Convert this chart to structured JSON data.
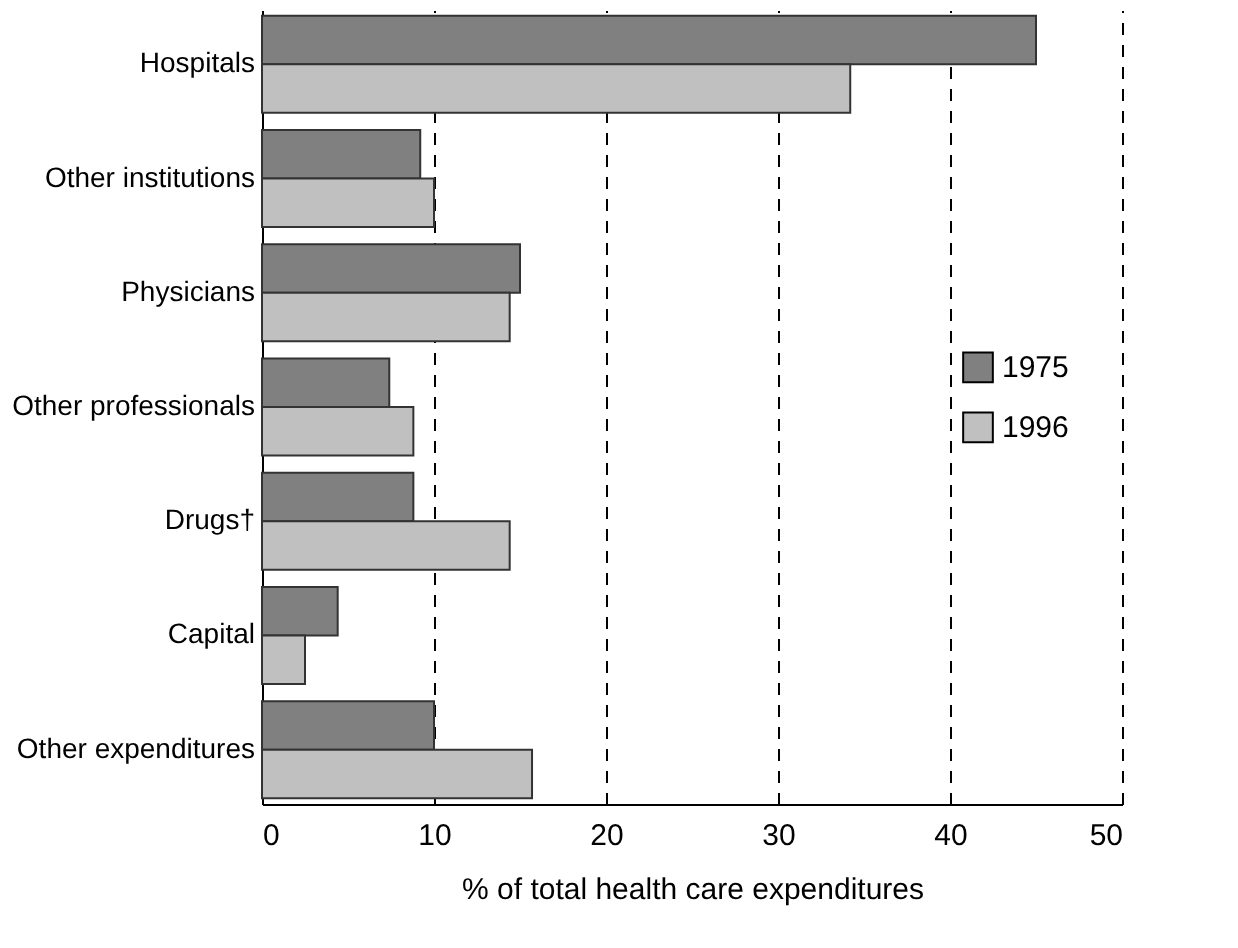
{
  "chart_data": {
    "type": "bar",
    "orientation": "horizontal",
    "categories": [
      "Hospitals",
      "Other institutions",
      "Physicians",
      "Other professionals",
      "Drugs†",
      "Capital",
      "Other expenditures"
    ],
    "series": [
      {
        "name": "1975",
        "color": "#808080",
        "values": [
          45.0,
          9.2,
          15.0,
          7.4,
          8.8,
          4.4,
          10.0
        ]
      },
      {
        "name": "1996",
        "color": "#c0c0c0",
        "values": [
          34.2,
          10.0,
          14.4,
          8.8,
          14.4,
          2.5,
          15.7
        ]
      }
    ],
    "xlabel": "% of total health care expenditures",
    "xlim": [
      0,
      50
    ],
    "xticks": [
      0,
      10,
      20,
      30,
      40,
      50
    ],
    "grid": "x",
    "legend": "right"
  }
}
